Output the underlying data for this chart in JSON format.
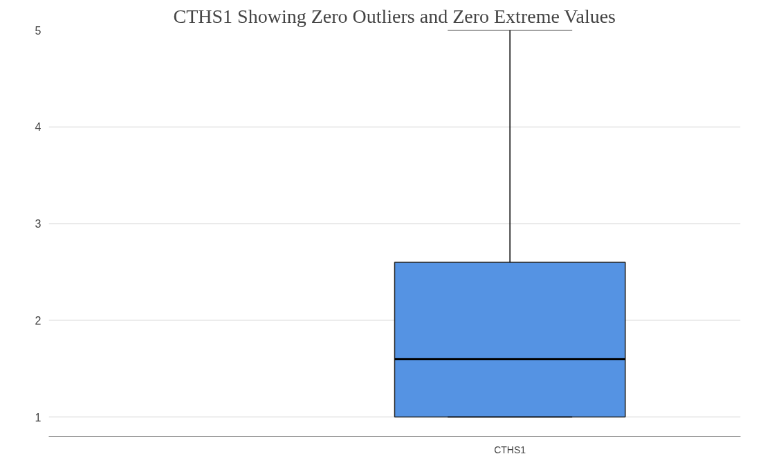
{
  "chart_data": {
    "type": "box",
    "title": "CTHS1 Showing Zero Outliers and Zero Extreme Values",
    "categories": [
      "CTHS1"
    ],
    "boxes": [
      {
        "low": 1,
        "q1": 1,
        "median": 1.6,
        "q3": 2.6,
        "high": 5
      }
    ],
    "color": "#5593e3",
    "ylim": [
      0.8,
      5
    ],
    "yticks": [
      1,
      2,
      3,
      4,
      5
    ],
    "grid": "y"
  }
}
